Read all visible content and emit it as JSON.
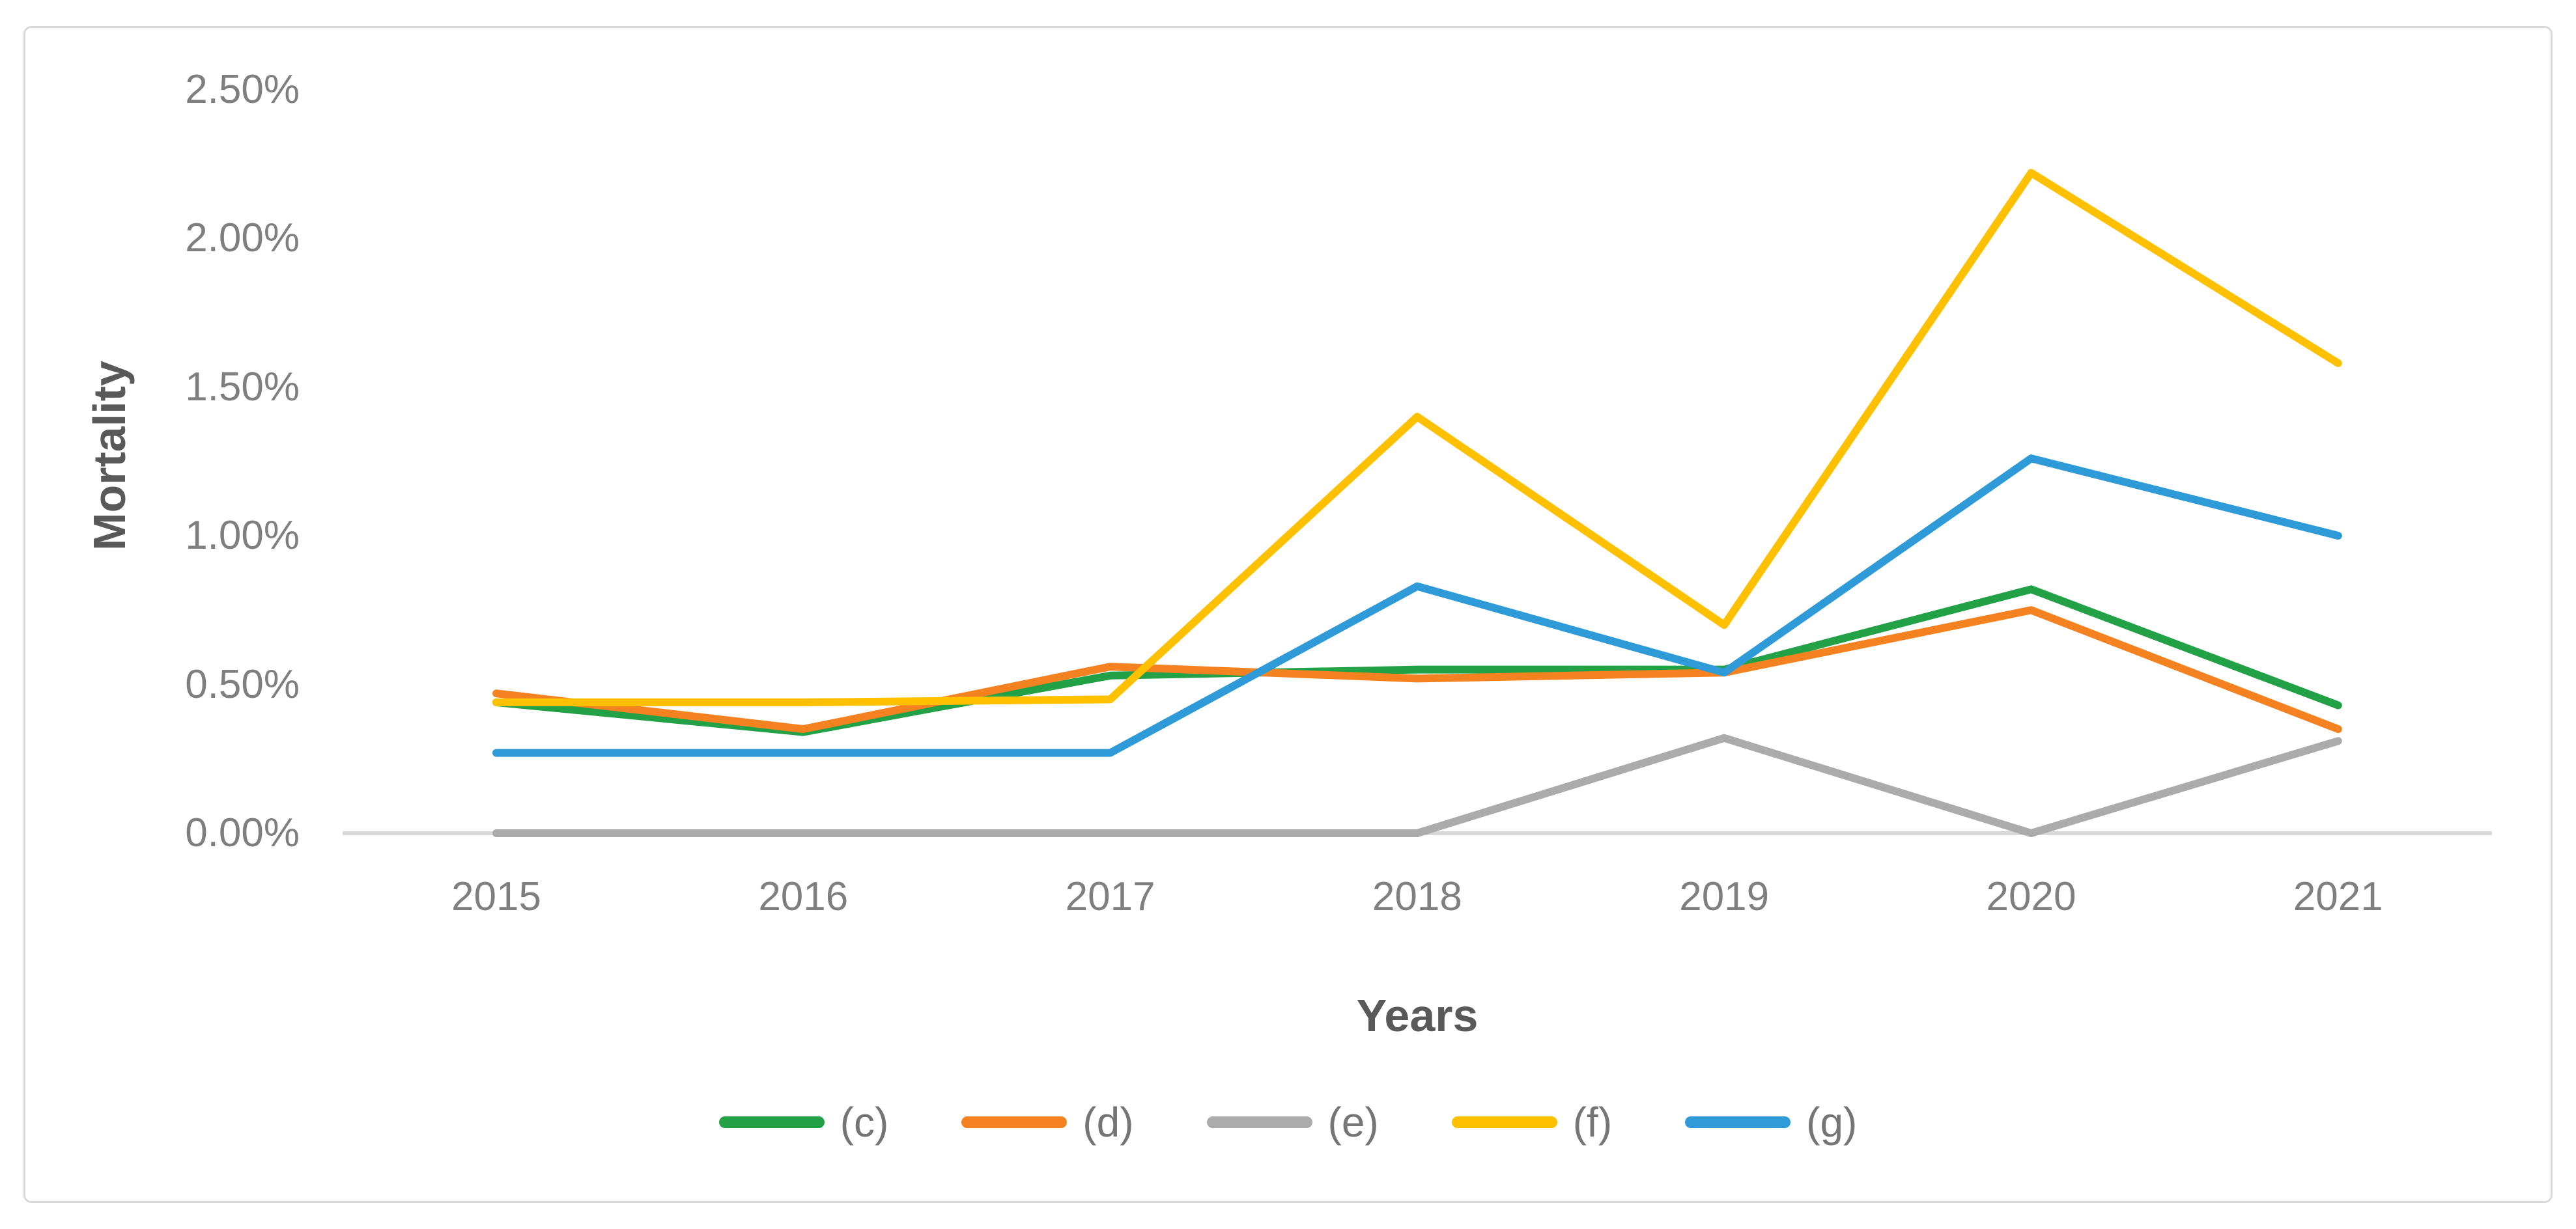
{
  "chart_data": {
    "type": "line",
    "title": "",
    "xlabel": "Years",
    "ylabel": "Mortality",
    "categories": [
      "2015",
      "2016",
      "2017",
      "2018",
      "2019",
      "2020",
      "2021"
    ],
    "series": [
      {
        "name": "(c)",
        "color": "#22A146",
        "values": [
          0.44,
          0.34,
          0.53,
          0.55,
          0.55,
          0.82,
          0.43
        ]
      },
      {
        "name": "(d)",
        "color": "#F58220",
        "values": [
          0.47,
          0.35,
          0.56,
          0.52,
          0.54,
          0.75,
          0.35
        ]
      },
      {
        "name": "(e)",
        "color": "#ABABAB",
        "values": [
          0.0,
          0.0,
          0.0,
          0.0,
          0.32,
          0.0,
          0.31
        ]
      },
      {
        "name": "(f)",
        "color": "#FFC000",
        "values": [
          0.44,
          0.44,
          0.45,
          1.4,
          0.7,
          2.22,
          1.58
        ]
      },
      {
        "name": "(g)",
        "color": "#2E9BD8",
        "values": [
          0.27,
          0.27,
          0.27,
          0.83,
          0.54,
          1.26,
          1.0
        ]
      }
    ],
    "ylim": [
      0,
      2.5
    ],
    "y_ticks": [
      "0.00%",
      "0.50%",
      "1.00%",
      "1.50%",
      "2.00%",
      "2.50%"
    ],
    "y_tick_values": [
      0,
      0.5,
      1.0,
      1.5,
      2.0,
      2.5
    ],
    "y_tick_format": "percent",
    "grid": false,
    "legend_position": "bottom",
    "colors": {
      "axis_line": "#D9D9D9",
      "tick_text": "#7F7F7F",
      "axis_title_text": "#595959",
      "figure_border": "#D9D9D9",
      "background": "#FFFFFF"
    }
  }
}
